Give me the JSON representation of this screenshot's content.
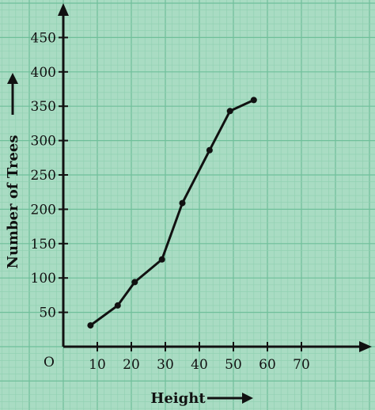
{
  "chart_data": {
    "type": "line",
    "xlabel": "Height",
    "ylabel": "Number of Trees",
    "origin_label": "O",
    "x_ticks": [
      10,
      20,
      30,
      40,
      50,
      60,
      70
    ],
    "y_ticks": [
      50,
      100,
      150,
      200,
      250,
      300,
      350,
      400,
      450
    ],
    "xlim": [
      0,
      90
    ],
    "ylim": [
      0,
      500
    ],
    "grid": true,
    "series": [
      {
        "x": [
          8,
          16,
          21,
          29,
          35,
          43,
          49,
          56
        ],
        "y": [
          31,
          60,
          94,
          127,
          209,
          286,
          343,
          359
        ]
      }
    ],
    "colors": {
      "background": "#a9dcc3",
      "grid_minor": "#8fcfb0",
      "grid_major": "#6fbf9a",
      "line": "#111111"
    }
  }
}
